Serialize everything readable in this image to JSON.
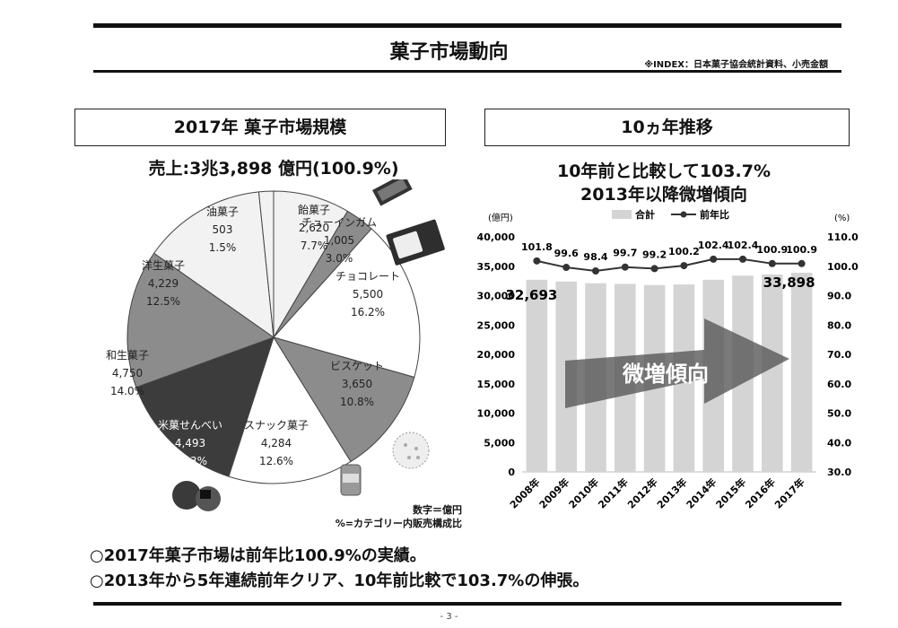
{
  "header": {
    "title": "菓子市場動向",
    "source": "※INDEX：日本菓子協会統計資料、小売金額"
  },
  "left_panel": {
    "heading": "2017年 菓子市場規模",
    "sales": "売上:3兆3,898 億円(100.9%)",
    "note_line1": "数字＝億円",
    "note_line2": "%=カテゴリー内販売構成比"
  },
  "right_panel": {
    "heading": "10ヵ年推移",
    "title_line1": "10年前と比較して103.7%",
    "title_line2": "2013年以降微増傾向",
    "arrow_label": "微増傾向"
  },
  "bullets": [
    "○2017年菓子市場は前年比100.9%の実績。",
    "○2013年から5年連続前年クリア、10年前比較で103.7%の伸張。"
  ],
  "page_number": "- 3 -",
  "colors": {
    "light": "#f2f2f2",
    "mid": "#8c8c8c",
    "dark": "#3c3c3c",
    "white": "#ffffff",
    "bar": "#d4d4d4",
    "line": "#333333"
  },
  "chart_data": [
    {
      "type": "pie",
      "slices": [
        {
          "label": "飴菓子",
          "value": 2620,
          "pct": "7.7%",
          "color": "#f2f2f2"
        },
        {
          "label": "チューインガム",
          "value": 1005,
          "pct": "3.0%",
          "color": "#8c8c8c"
        },
        {
          "label": "チョコレート",
          "value": 5500,
          "pct": "16.2%",
          "color": "#ffffff"
        },
        {
          "label": "ビスケット",
          "value": 3650,
          "pct": "10.8%",
          "color": "#8c8c8c"
        },
        {
          "label": "スナック菓子",
          "value": 4284,
          "pct": "12.6%",
          "color": "#ffffff"
        },
        {
          "label": "米菓せんべい",
          "value": 4493,
          "pct": "13.3%",
          "color": "#3c3c3c"
        },
        {
          "label": "和生菓子",
          "value": 4750,
          "pct": "14.0%",
          "color": "#8c8c8c"
        },
        {
          "label": "洋生菓子",
          "value": 4229,
          "pct": "12.5%",
          "color": "#f2f2f2"
        },
        {
          "label": "油菓子",
          "value": 503,
          "pct": "1.5%",
          "color": "#f2f2f2"
        }
      ]
    },
    {
      "type": "bar+line",
      "categories": [
        "2008年",
        "2009年",
        "2010年",
        "2011年",
        "2012年",
        "2013年",
        "2014年",
        "2015年",
        "2016年",
        "2017年"
      ],
      "series": [
        {
          "name": "合計",
          "type": "bar",
          "axis": "left",
          "values": [
            32693,
            32400,
            32100,
            32000,
            31800,
            31900,
            32700,
            33400,
            33600,
            33898
          ]
        },
        {
          "name": "前年比",
          "type": "line",
          "axis": "right",
          "values": [
            101.8,
            99.6,
            98.4,
            99.7,
            99.2,
            100.2,
            102.4,
            102.4,
            100.9,
            100.9
          ]
        }
      ],
      "bar_labels": {
        "first": "32,693",
        "last": "33,898"
      },
      "y_left": {
        "label": "(億円)",
        "range": [
          0,
          40000
        ],
        "ticks": [
          "0",
          "5,000",
          "10,000",
          "15,000",
          "20,000",
          "25,000",
          "30,000",
          "35,000",
          "40,000"
        ]
      },
      "y_right": {
        "label": "(%)",
        "range": [
          30,
          110
        ],
        "ticks": [
          "30.0",
          "40.0",
          "50.0",
          "60.0",
          "70.0",
          "80.0",
          "90.0",
          "100.0",
          "110.0"
        ]
      },
      "legend": "top",
      "grid": false
    }
  ]
}
